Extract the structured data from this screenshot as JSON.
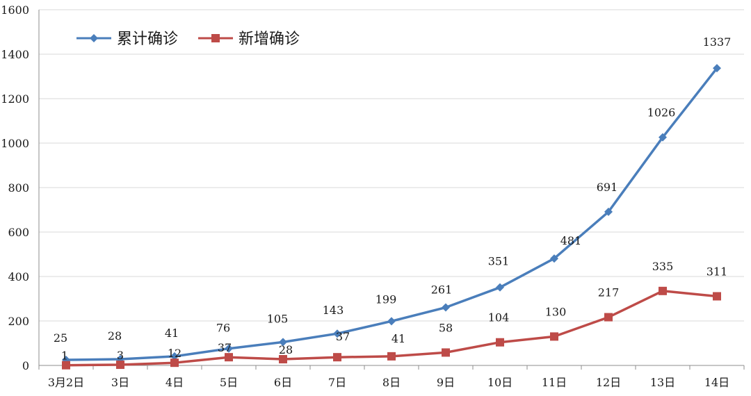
{
  "chart_data": {
    "type": "line",
    "categories": [
      "3月2日",
      "3日",
      "4日",
      "5日",
      "6日",
      "7日",
      "8日",
      "9日",
      "10日",
      "11日",
      "12日",
      "13日",
      "14日"
    ],
    "ylim": [
      0,
      1600
    ],
    "yticks": [
      0,
      200,
      400,
      600,
      800,
      1000,
      1200,
      1400,
      1600
    ],
    "grid": true,
    "legend_position": "top-left",
    "series": [
      {
        "name": "累计确诊",
        "color": "#4a7ebb",
        "marker": "diamond",
        "values": [
          25,
          28,
          41,
          76,
          105,
          143,
          199,
          261,
          351,
          481,
          691,
          1026,
          1337
        ],
        "labels": [
          "25",
          "28",
          "41",
          "76",
          "105",
          "143",
          "199",
          "261",
          "351",
          "481",
          "691",
          "1026",
          "1337"
        ]
      },
      {
        "name": "新增确诊",
        "color": "#be4b48",
        "marker": "square",
        "values": [
          1,
          3,
          12,
          37,
          28,
          37,
          41,
          58,
          104,
          130,
          217,
          335,
          311
        ],
        "labels": [
          "1",
          "3",
          "12",
          "37",
          "28",
          "37",
          "41",
          "58",
          "104",
          "130",
          "217",
          "335",
          "311"
        ]
      }
    ]
  }
}
